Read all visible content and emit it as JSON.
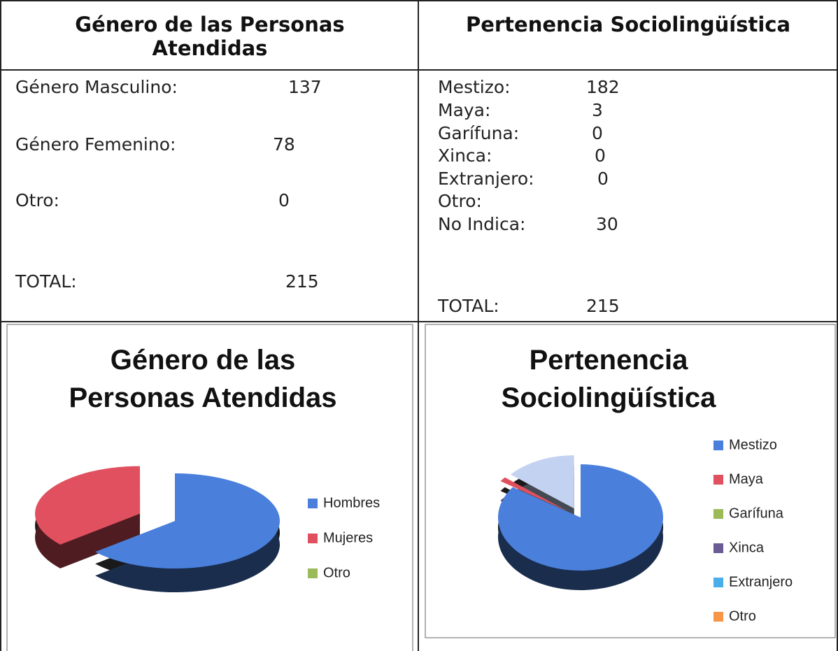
{
  "table": {
    "headers": [
      "Género de las Personas Atendidas",
      "Pertenencia Sociolingüística"
    ],
    "left_rows": [
      [
        "Género Masculino:",
        137
      ],
      [
        "Género Femenino:",
        78
      ],
      [
        "Otro:",
        0
      ],
      [
        "TOTAL:",
        215
      ]
    ],
    "right_rows": [
      [
        "Mestizo:",
        182
      ],
      [
        "Maya:",
        3
      ],
      [
        "Garífuna:",
        0
      ],
      [
        "Xinca:",
        0
      ],
      [
        "Extranjero:",
        0
      ],
      [
        "Otro:"
      ],
      [
        "No Indica:",
        30
      ],
      [
        "TOTAL:",
        215
      ]
    ]
  },
  "chart_data": [
    {
      "type": "pie",
      "title": "Género de las Personas Atendidas",
      "categories": [
        "Hombres",
        "Mujeres",
        "Otro"
      ],
      "values": [
        137,
        78,
        0
      ],
      "colors": [
        "#4a80dc",
        "#e0505f",
        "#9bbb59"
      ],
      "exploded": [
        false,
        true,
        false
      ]
    },
    {
      "type": "pie",
      "title": "Pertenencia Sociolingüística",
      "categories": [
        "Mestizo",
        "Maya",
        "Garífuna",
        "Xinca",
        "Extranjero",
        "Otro",
        null
      ],
      "values": [
        182,
        3,
        0,
        0,
        0,
        0,
        30
      ],
      "colors": [
        "#4a80dc",
        "#e0505f",
        "#9bbb59",
        "#6b5b95",
        "#4aaee8",
        "#f79646",
        "#c3d2f0"
      ],
      "exploded": [
        false,
        true,
        false,
        false,
        false,
        false,
        true
      ]
    }
  ]
}
